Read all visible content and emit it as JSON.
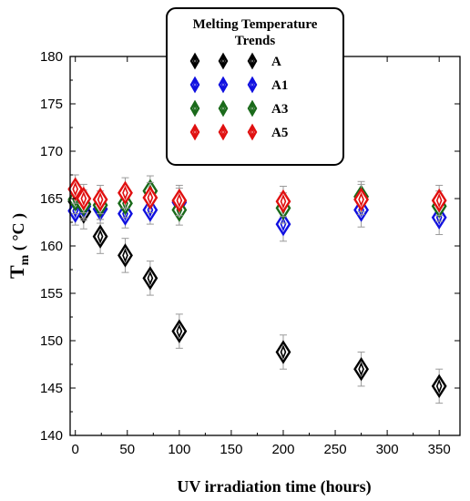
{
  "chart_data": {
    "type": "scatter",
    "title": "",
    "xlabel": "UV irradiation time   (hours)",
    "ylabel_main": "T",
    "ylabel_sub": "m",
    "ylabel_unit": " ( °C )",
    "xlim": [
      -5,
      370
    ],
    "ylim": [
      140,
      180
    ],
    "xticks": [
      0,
      50,
      100,
      150,
      200,
      250,
      300,
      350
    ],
    "yticks": [
      140,
      145,
      150,
      155,
      160,
      165,
      170,
      175,
      180
    ],
    "grid": false,
    "legend": {
      "title_line1": "Melting Temperature",
      "title_line2": "Trends",
      "position": "top-center"
    },
    "marker": "diamond",
    "series": [
      {
        "name": "A",
        "color": "#000000",
        "points": [
          {
            "x": 0,
            "y": 164.7,
            "err": 1.5
          },
          {
            "x": 8,
            "y": 163.6,
            "err": 1.8
          },
          {
            "x": 24,
            "y": 161.0,
            "err": 1.8
          },
          {
            "x": 48,
            "y": 159.0,
            "err": 1.8
          },
          {
            "x": 72,
            "y": 156.6,
            "err": 1.8
          },
          {
            "x": 100,
            "y": 151.0,
            "err": 1.8
          },
          {
            "x": 200,
            "y": 148.8,
            "err": 1.8
          },
          {
            "x": 275,
            "y": 147.0,
            "err": 1.8
          },
          {
            "x": 350,
            "y": 145.2,
            "err": 1.8
          }
        ]
      },
      {
        "name": "A1",
        "color": "#1010e0",
        "points": [
          {
            "x": 0,
            "y": 163.7,
            "err": 1.5
          },
          {
            "x": 8,
            "y": 164.2,
            "err": 1.5
          },
          {
            "x": 24,
            "y": 163.9,
            "err": 1.5
          },
          {
            "x": 48,
            "y": 163.4,
            "err": 1.5
          },
          {
            "x": 72,
            "y": 163.8,
            "err": 1.5
          },
          {
            "x": 100,
            "y": 164.6,
            "err": 1.5
          },
          {
            "x": 200,
            "y": 162.3,
            "err": 1.8
          },
          {
            "x": 275,
            "y": 163.8,
            "err": 1.8
          },
          {
            "x": 350,
            "y": 163.0,
            "err": 1.8
          }
        ]
      },
      {
        "name": "A3",
        "color": "#1a6a1a",
        "points": [
          {
            "x": 0,
            "y": 164.9,
            "err": 1.5
          },
          {
            "x": 8,
            "y": 164.4,
            "err": 1.5
          },
          {
            "x": 24,
            "y": 164.3,
            "err": 1.5
          },
          {
            "x": 48,
            "y": 164.5,
            "err": 1.5
          },
          {
            "x": 72,
            "y": 165.8,
            "err": 1.6
          },
          {
            "x": 100,
            "y": 163.8,
            "err": 1.6
          },
          {
            "x": 200,
            "y": 164.0,
            "err": 1.6
          },
          {
            "x": 275,
            "y": 165.2,
            "err": 1.6
          },
          {
            "x": 350,
            "y": 164.2,
            "err": 1.6
          }
        ]
      },
      {
        "name": "A5",
        "color": "#e01010",
        "points": [
          {
            "x": 0,
            "y": 166.0,
            "err": 1.5
          },
          {
            "x": 8,
            "y": 165.0,
            "err": 1.5
          },
          {
            "x": 24,
            "y": 164.9,
            "err": 1.5
          },
          {
            "x": 48,
            "y": 165.6,
            "err": 1.6
          },
          {
            "x": 72,
            "y": 165.1,
            "err": 1.6
          },
          {
            "x": 100,
            "y": 164.8,
            "err": 1.6
          },
          {
            "x": 200,
            "y": 164.7,
            "err": 1.6
          },
          {
            "x": 275,
            "y": 164.9,
            "err": 1.6
          },
          {
            "x": 350,
            "y": 164.8,
            "err": 1.6
          }
        ]
      }
    ]
  }
}
